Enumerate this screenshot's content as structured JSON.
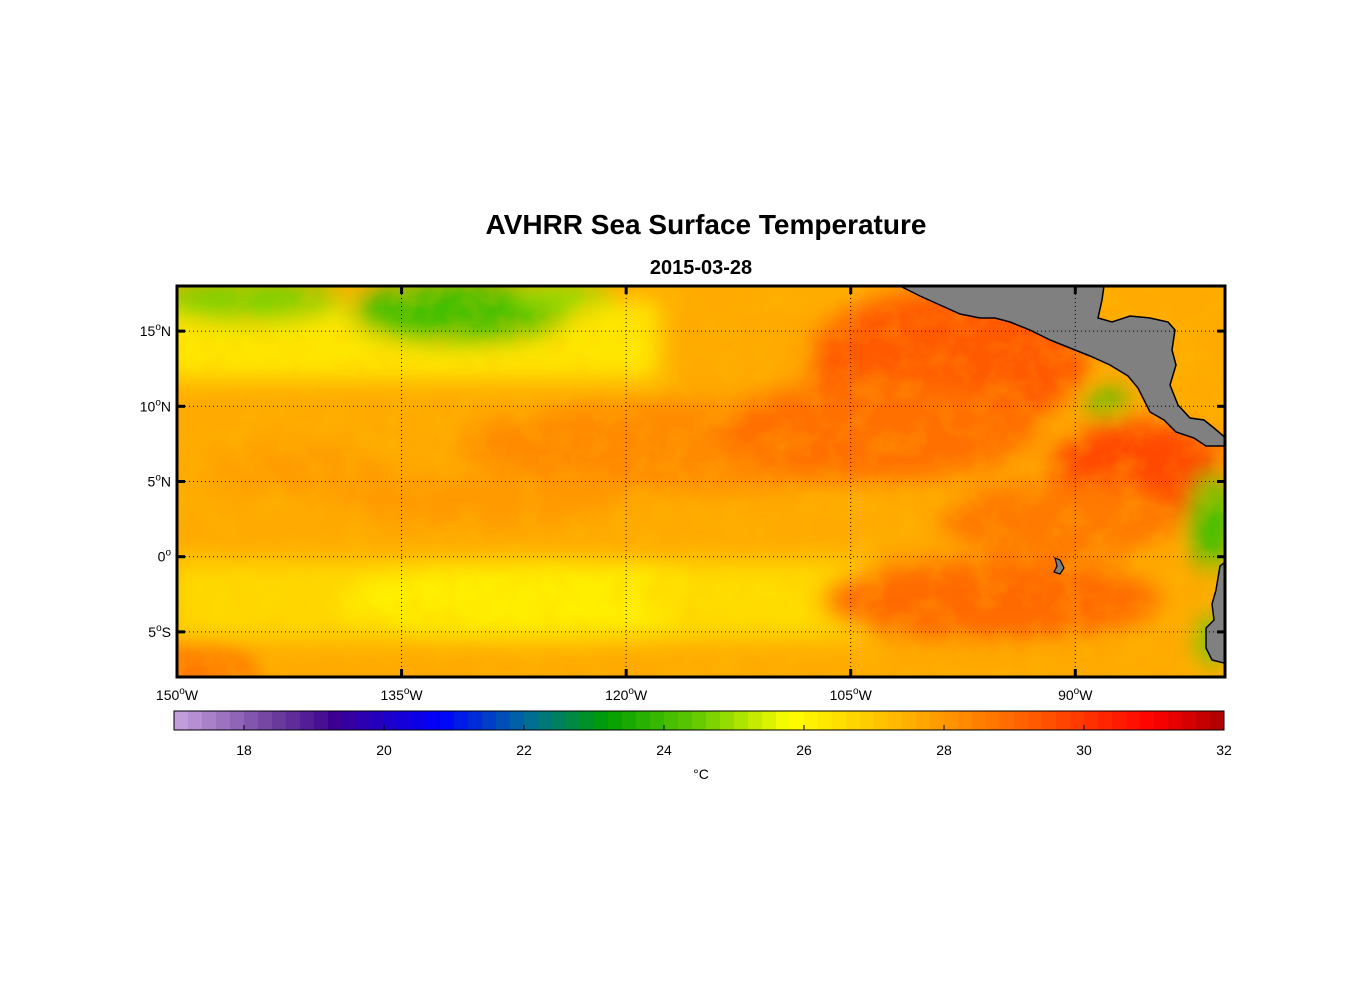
{
  "title": "AVHRR Sea Surface Temperature",
  "subtitle": "2015-03-28",
  "map": {
    "lon_range": [
      -150,
      -80
    ],
    "lat_range": [
      -8,
      18
    ],
    "lat_ticks": [
      {
        "value": 15,
        "num": "15",
        "hemi": "N"
      },
      {
        "value": 10,
        "num": "10",
        "hemi": "N"
      },
      {
        "value": 5,
        "num": "5",
        "hemi": "N"
      },
      {
        "value": 0,
        "num": "0",
        "hemi": ""
      },
      {
        "value": -5,
        "num": "5",
        "hemi": "S"
      }
    ],
    "lon_ticks": [
      {
        "value": -150,
        "num": "150",
        "hemi": "W"
      },
      {
        "value": -135,
        "num": "135",
        "hemi": "W"
      },
      {
        "value": -120,
        "num": "120",
        "hemi": "W"
      },
      {
        "value": -105,
        "num": "105",
        "hemi": "W"
      },
      {
        "value": -90,
        "num": "90",
        "hemi": "W"
      }
    ],
    "land_color": "#808080",
    "grid": "dotted"
  },
  "colorbar": {
    "label": "°C",
    "vmin": 17,
    "vmax": 32,
    "ticks": [
      "18",
      "20",
      "22",
      "24",
      "26",
      "28",
      "30",
      "32"
    ],
    "stops": [
      {
        "v": 17,
        "c": "#c8a4e0"
      },
      {
        "v": 18.5,
        "c": "#6a3a9a"
      },
      {
        "v": 19.3,
        "c": "#3c0090"
      },
      {
        "v": 20.8,
        "c": "#0000ff"
      },
      {
        "v": 22,
        "c": "#006aa0"
      },
      {
        "v": 23.2,
        "c": "#00a000"
      },
      {
        "v": 24.5,
        "c": "#66cc00"
      },
      {
        "v": 25.8,
        "c": "#ffff00"
      },
      {
        "v": 27.5,
        "c": "#ffb000"
      },
      {
        "v": 29.5,
        "c": "#ff5000"
      },
      {
        "v": 31,
        "c": "#ff0000"
      },
      {
        "v": 32,
        "c": "#aa0000"
      }
    ]
  }
}
